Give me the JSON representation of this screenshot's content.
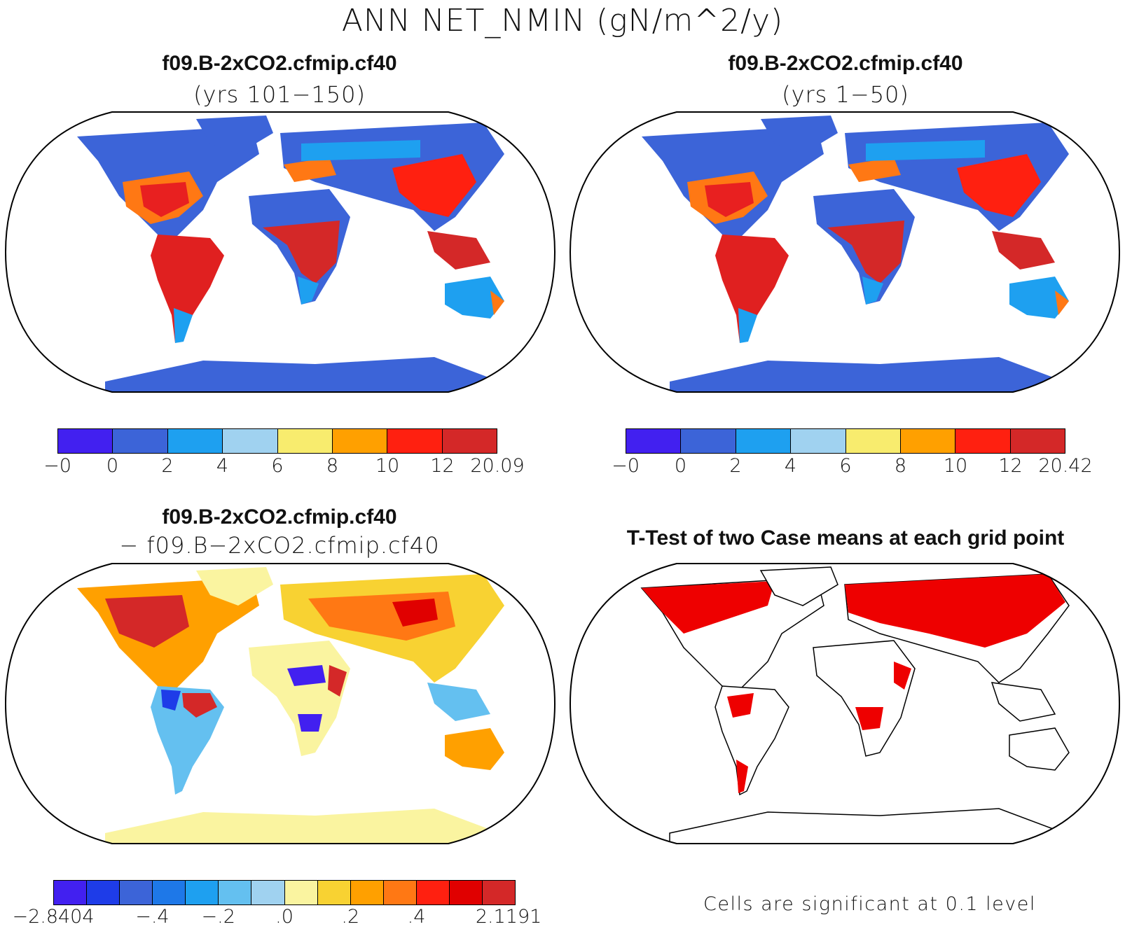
{
  "main_title": "ANN NET_NMIN (gN/m^2/y)",
  "panels": [
    {
      "title": "f09.B-2xCO2.cfmip.cf40",
      "subtitle": "(yrs 101−150)",
      "colorbar": {
        "colors": [
          "#4220f0",
          "#3c64d8",
          "#1ea0f0",
          "#a0d2f0",
          "#f8ec6e",
          "#ffa000",
          "#ff2010",
          "#d42828"
        ],
        "labels": [
          "−0",
          "0",
          "2",
          "4",
          "6",
          "8",
          "10",
          "12",
          "20.09"
        ]
      }
    },
    {
      "title": "f09.B-2xCO2.cfmip.cf40",
      "subtitle": "(yrs 1−50)",
      "colorbar": {
        "colors": [
          "#4220f0",
          "#3c64d8",
          "#1ea0f0",
          "#a0d2f0",
          "#f8ec6e",
          "#ffa000",
          "#ff2010",
          "#d42828"
        ],
        "labels": [
          "−0",
          "0",
          "2",
          "4",
          "6",
          "8",
          "10",
          "12",
          "20.42"
        ]
      }
    },
    {
      "title": "f09.B-2xCO2.cfmip.cf40",
      "subtitle": "− f09.B−2xCO2.cfmip.cf40",
      "colorbar": {
        "colors": [
          "#4220f0",
          "#1e3ce8",
          "#3c64d8",
          "#1e78e8",
          "#1ea0f0",
          "#64c0f0",
          "#a0d2f0",
          "#faf4a0",
          "#f8d232",
          "#ffa000",
          "#ff7814",
          "#ff2010",
          "#e00000",
          "#d42828"
        ],
        "labels": [
          "−2.8404",
          "−.4",
          "−.2",
          ".0",
          ".2",
          ".4",
          "2.1191"
        ]
      }
    },
    {
      "title": "T-Test of two Case means at each grid point",
      "note": "Cells are significant at 0.1 level"
    }
  ]
}
